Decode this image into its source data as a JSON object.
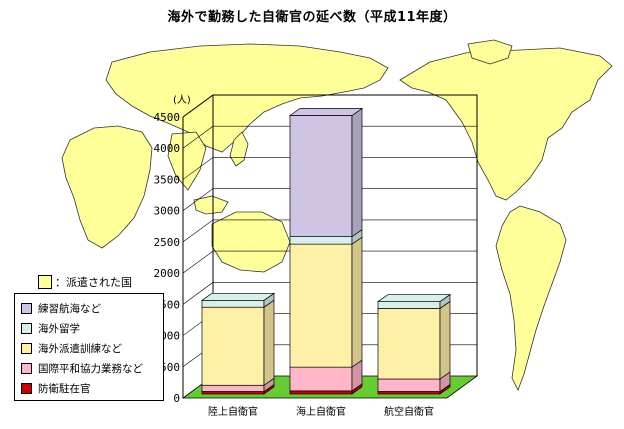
{
  "title": "海外で勤務した自衛官の延べ数（平成11年度）",
  "map_legend": {
    "label": "：派遣された国",
    "color": "#ffff99"
  },
  "chart_data": {
    "type": "bar",
    "stacked": true,
    "unit": "(人)",
    "categories": [
      "陸上自衛官",
      "海上自衛官",
      "航空自衛官"
    ],
    "series": [
      {
        "name": "防衛駐在官",
        "color": "#cc0000",
        "values": [
          40,
          50,
          40
        ]
      },
      {
        "name": "国際平和協力業務など",
        "color": "#ffb6c8",
        "values": [
          100,
          380,
          200
        ]
      },
      {
        "name": "海外派遣訓練など",
        "color": "#fff0a8",
        "values": [
          1250,
          1970,
          1130
        ]
      },
      {
        "name": "海外留学",
        "color": "#d8f0ec",
        "values": [
          110,
          120,
          110
        ]
      },
      {
        "name": "練習航海など",
        "color": "#cfc4e4",
        "values": [
          0,
          1940,
          0
        ]
      }
    ],
    "legend_order": [
      "練習航海など",
      "海外留学",
      "海外派遣訓練など",
      "国際平和協力業務など",
      "防衛駐在官"
    ],
    "yticks": [
      0,
      500,
      1000,
      1500,
      2000,
      2500,
      3000,
      3500,
      4000,
      4500
    ],
    "ylim": [
      0,
      4500
    ],
    "grid": true,
    "floor_color": "#66cc33"
  }
}
